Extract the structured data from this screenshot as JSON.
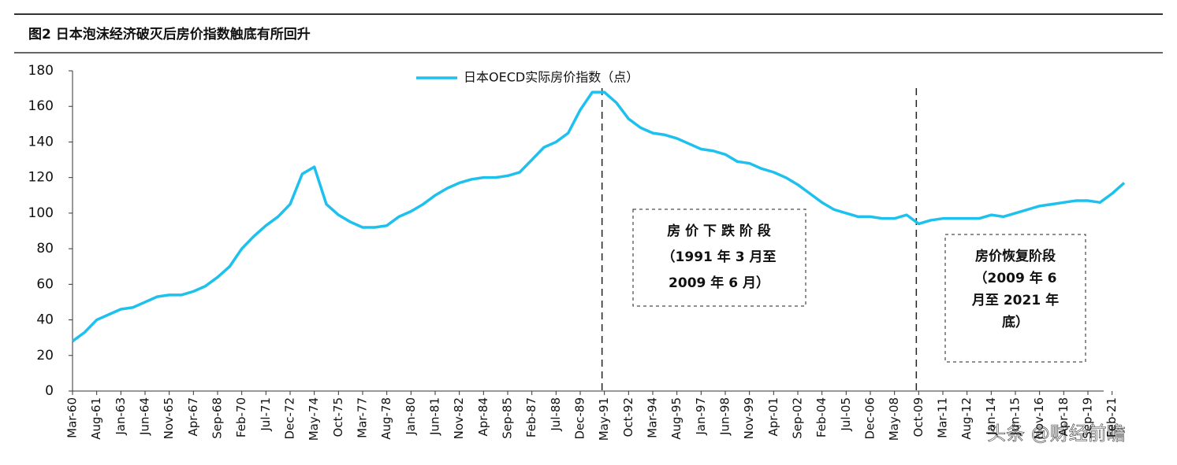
{
  "chart_data": {
    "type": "line",
    "title": "图2  日本泡沫经济破灭后房价指数触底有所回升",
    "categories": [
      "Mar-60",
      null,
      "Aug-61",
      null,
      "Jan-63",
      null,
      "Jun-64",
      null,
      "Nov-65",
      null,
      "Apr-67",
      null,
      "Sep-68",
      null,
      "Feb-70",
      null,
      "Jul-71",
      null,
      "Dec-72",
      null,
      "May-74",
      null,
      "Oct-75",
      null,
      "Mar-77",
      null,
      "Aug-78",
      null,
      "Jan-80",
      null,
      "Jun-81",
      null,
      "Nov-82",
      null,
      "Apr-84",
      null,
      "Sep-85",
      null,
      "Feb-87",
      null,
      "Jul-88",
      null,
      "Dec-89",
      null,
      "May-91",
      null,
      "Oct-92",
      null,
      "Mar-94",
      null,
      "Aug-95",
      null,
      "Jan-97",
      null,
      "Jun-98",
      null,
      "Nov-99",
      null,
      "Apr-01",
      null,
      "Sep-02",
      null,
      "Feb-04",
      null,
      "Jul-05",
      null,
      "Dec-06",
      null,
      "May-08",
      null,
      "Oct-09",
      null,
      "Mar-11",
      null,
      "Aug-12",
      null,
      "Jan-14",
      null,
      "Jun-15",
      null,
      "Nov-16",
      null,
      "Apr-18",
      null,
      "Sep-19",
      null,
      "Feb-21",
      null
    ],
    "series": [
      {
        "name": "日本OECD实际房价指数（点）",
        "color": "#1ec0ee",
        "values": [
          28,
          33,
          40,
          43,
          46,
          47,
          50,
          53,
          54,
          54,
          56,
          59,
          64,
          70,
          80,
          87,
          93,
          98,
          105,
          122,
          126,
          105,
          99,
          95,
          92,
          92,
          93,
          98,
          101,
          105,
          110,
          114,
          117,
          119,
          120,
          120,
          121,
          123,
          130,
          137,
          140,
          145,
          158,
          168,
          168,
          162,
          153,
          148,
          145,
          144,
          142,
          139,
          136,
          135,
          133,
          129,
          128,
          125,
          123,
          120,
          116,
          111,
          106,
          102,
          100,
          98,
          98,
          97,
          97,
          99,
          94,
          96,
          97,
          97,
          97,
          97,
          99,
          98,
          100,
          102,
          104,
          105,
          106,
          107,
          107,
          106,
          111,
          117
        ]
      }
    ],
    "ylim": [
      0,
      180
    ],
    "yticks": [
      0,
      20,
      40,
      60,
      80,
      100,
      120,
      140,
      160,
      180
    ],
    "annotations": [
      {
        "lines": [
          "房 价 下 跌 阶 段",
          "（1991 年 3 月至",
          "2009 年 6 月）"
        ]
      },
      {
        "lines": [
          "房价恢复阶段",
          "（2009 年 6",
          "月至 2021 年",
          "底）"
        ]
      }
    ],
    "watermark": "头条 @财经前瞻"
  }
}
